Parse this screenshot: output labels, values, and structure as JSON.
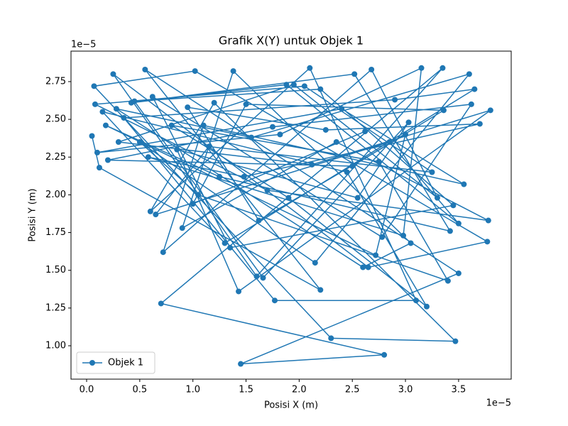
{
  "chart_data": {
    "type": "line",
    "title": "Grafik X(Y) untuk Objek 1",
    "x_label": "Posisi X (m)",
    "y_label": "Posisi Y (m)",
    "x_offset_label": "1e−5",
    "y_offset_label": "1e−5",
    "x": [
      0.05,
      0.12,
      2.2,
      0.55,
      3.5,
      1.45,
      2.8,
      0.7,
      3.35,
      1.6,
      0.25,
      2.65,
      3.77,
      1.02,
      0.07,
      2.3,
      3.47,
      1.2,
      0.6,
      2.1,
      3.1,
      1.77,
      0.35,
      2.9,
      3.65,
      1.3,
      0.15,
      2.45,
      3.2,
      1.9,
      0.8,
      2.75,
      3.4,
      1.05,
      0.5,
      2.15,
      3.6,
      1.55,
      0.28,
      2.6,
      3.05,
      1.38,
      0.9,
      2.35,
      3.78,
      1.7,
      0.08,
      2.05,
      3.25,
      1.15,
      0.65,
      2.85,
      3.5,
      1.88,
      0.42,
      2.52,
      3.42,
      1.25,
      0.18,
      2.72,
      3.0,
      1.62,
      0.95,
      2.25,
      3.7,
      1.48,
      0.58,
      2.98,
      3.15,
      1.82,
      0.1,
      2.4,
      3.55,
      1.1,
      0.72,
      2.68,
      3.3,
      1.95,
      0.3,
      2.12,
      3.8,
      1.43,
      0.85,
      2.55,
      3.03,
      1.66,
      0.45,
      2.2,
      3.45,
      1.35,
      0.62,
      2.78,
      3.62,
      1.75,
      0.2,
      2.5,
      3.36,
      1.5,
      1.0,
      2.62
    ],
    "series": [
      {
        "name": "Objek 1",
        "color": "#1f77b4",
        "marker": "circle",
        "values": [
          2.39,
          2.18,
          1.37,
          2.83,
          1.48,
          0.88,
          0.94,
          1.28,
          2.84,
          1.46,
          2.8,
          1.52,
          1.69,
          2.82,
          2.72,
          1.05,
          1.03,
          2.61,
          1.89,
          2.84,
          1.3,
          1.3,
          2.51,
          2.63,
          2.7,
          1.68,
          2.55,
          2.15,
          1.26,
          1.98,
          2.46,
          2.22,
          1.43,
          2,
          2.35,
          1.55,
          2.8,
          2.38,
          2.57,
          1.52,
          1.68,
          2.82,
          1.78,
          2.35,
          1.83,
          2.03,
          2.6,
          2.72,
          2.15,
          2.32,
          1.87,
          2.35,
          1.81,
          2.73,
          2.61,
          2.8,
          1.76,
          2.12,
          2.46,
          1.6,
          2.4,
          1.83,
          2.58,
          2.43,
          2.47,
          2.12,
          2.25,
          1.73,
          2.84,
          2.4,
          2.28,
          2.57,
          2.07,
          2.46,
          1.62,
          2.83,
          1.98,
          2.73,
          2.35,
          2.2,
          2.56,
          1.36,
          2.3,
          1.98,
          2.48,
          1.45,
          2.62,
          2.7,
          1.93,
          1.65,
          2.65,
          1.72,
          2.6,
          2.45,
          2.23,
          2.19,
          2.56,
          2.6,
          1.94,
          2.42
        ]
      }
    ],
    "xlim": [
      -0.147,
      3.995
    ],
    "ylim": [
      0.779,
      2.952
    ],
    "xticks": [
      {
        "value": 0,
        "label": "0.0"
      },
      {
        "value": 0.5,
        "label": "0.5"
      },
      {
        "value": 1,
        "label": "1.0"
      },
      {
        "value": 1.5,
        "label": "1.5"
      },
      {
        "value": 2,
        "label": "2.0"
      },
      {
        "value": 2.5,
        "label": "2.5"
      },
      {
        "value": 3,
        "label": "3.0"
      },
      {
        "value": 3.5,
        "label": "3.5"
      }
    ],
    "yticks": [
      {
        "value": 1,
        "label": "1.00"
      },
      1.25,
      {
        "value": 1.5,
        "label": "1.50"
      },
      1.75,
      {
        "value": 2,
        "label": "2.00"
      },
      2.25,
      {
        "value": 2.5,
        "label": "2.50"
      },
      2.75
    ],
    "legend_position": "lower left",
    "grid": false
  }
}
